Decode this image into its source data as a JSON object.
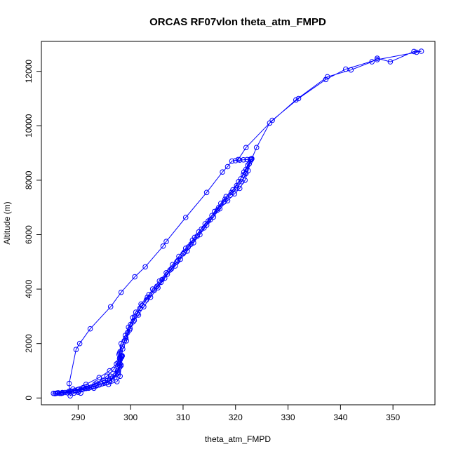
{
  "chart_data": {
    "type": "line",
    "title": "ORCAS RF07vlon theta_atm_FMPD",
    "xlabel": "theta_atm_FMPD",
    "ylabel": "Altitude (m)",
    "xlim": [
      283,
      358
    ],
    "ylim": [
      -250,
      13100
    ],
    "xticks": [
      290,
      300,
      310,
      320,
      330,
      340,
      350
    ],
    "yticks": [
      0,
      2000,
      4000,
      6000,
      8000,
      10000,
      12000
    ],
    "grid": false,
    "legend": "none",
    "color": "#0000ff",
    "marker": "open-circle",
    "series": [
      {
        "points": [
          [
            285.3,
            170
          ],
          [
            286.5,
            170
          ],
          [
            288.0,
            190
          ],
          [
            289.5,
            260
          ],
          [
            291.0,
            330
          ],
          [
            292.5,
            400
          ],
          [
            294.0,
            480
          ],
          [
            295.5,
            560
          ],
          [
            296.5,
            700
          ],
          [
            297.5,
            900
          ],
          [
            298.0,
            1150
          ],
          [
            298.2,
            1550
          ],
          [
            298.5,
            1800
          ],
          [
            299.2,
            2100
          ],
          [
            299.8,
            2500
          ],
          [
            300.5,
            2800
          ],
          [
            301.3,
            3100
          ],
          [
            302.2,
            3400
          ],
          [
            303.2,
            3700
          ],
          [
            304.2,
            4000
          ],
          [
            305.5,
            4300
          ],
          [
            306.8,
            4600
          ],
          [
            308.0,
            4900
          ],
          [
            309.2,
            5200
          ],
          [
            310.5,
            5500
          ],
          [
            311.8,
            5800
          ],
          [
            313.0,
            6100
          ],
          [
            314.2,
            6400
          ],
          [
            315.5,
            6700
          ],
          [
            316.8,
            7000
          ],
          [
            318.0,
            7300
          ],
          [
            319.2,
            7550
          ],
          [
            320.2,
            7800
          ],
          [
            321.0,
            8050
          ],
          [
            321.6,
            8300
          ],
          [
            322.3,
            8550
          ],
          [
            323.0,
            8770
          ],
          [
            323.1,
            8790
          ],
          [
            324.0,
            9200
          ],
          [
            326.5,
            10100
          ],
          [
            331.5,
            10950
          ],
          [
            337.5,
            11800
          ],
          [
            342.0,
            12050
          ],
          [
            346.0,
            12350
          ],
          [
            347.0,
            12480
          ],
          [
            349.5,
            12350
          ],
          [
            354.0,
            12730
          ],
          [
            355.4,
            12740
          ],
          [
            354.5,
            12700
          ],
          [
            347.0,
            12430
          ],
          [
            341.0,
            12080
          ],
          [
            337.2,
            11700
          ],
          [
            332.0,
            11000
          ],
          [
            327.0,
            10200
          ],
          [
            322.0,
            9200
          ],
          [
            320.5,
            8760
          ],
          [
            319.3,
            8700
          ],
          [
            318.5,
            8500
          ],
          [
            317.5,
            8300
          ],
          [
            314.5,
            7550
          ],
          [
            310.5,
            6630
          ],
          [
            306.8,
            5750
          ],
          [
            306.2,
            5580
          ],
          [
            302.8,
            4820
          ],
          [
            300.8,
            4450
          ],
          [
            298.2,
            3880
          ],
          [
            296.2,
            3350
          ],
          [
            292.3,
            2540
          ],
          [
            290.3,
            2000
          ],
          [
            289.6,
            1780
          ],
          [
            288.3,
            530
          ],
          [
            288.5,
            80
          ],
          [
            289.2,
            180
          ],
          [
            290.5,
            180
          ]
        ]
      },
      {
        "points": [
          [
            285.6,
            160
          ],
          [
            287.0,
            180
          ],
          [
            288.8,
            230
          ],
          [
            290.5,
            300
          ],
          [
            292.0,
            360
          ],
          [
            293.5,
            450
          ],
          [
            295.0,
            560
          ],
          [
            296.0,
            650
          ],
          [
            297.2,
            860
          ],
          [
            297.8,
            1100
          ],
          [
            298.0,
            1400
          ],
          [
            297.8,
            1600
          ],
          [
            298.2,
            2000
          ],
          [
            299.0,
            2300
          ],
          [
            299.6,
            2600
          ],
          [
            300.4,
            2950
          ],
          [
            301.0,
            3150
          ],
          [
            302.0,
            3450
          ],
          [
            303.5,
            3800
          ],
          [
            305.0,
            4100
          ],
          [
            306.0,
            4350
          ],
          [
            307.5,
            4700
          ],
          [
            308.8,
            5000
          ],
          [
            310.0,
            5300
          ],
          [
            311.0,
            5550
          ],
          [
            312.2,
            5900
          ],
          [
            313.5,
            6200
          ],
          [
            314.8,
            6500
          ],
          [
            316.0,
            6850
          ],
          [
            317.2,
            7150
          ],
          [
            318.2,
            7400
          ],
          [
            319.5,
            7650
          ],
          [
            320.6,
            7950
          ],
          [
            321.5,
            8200
          ],
          [
            322.0,
            8400
          ],
          [
            322.8,
            8700
          ],
          [
            323.0,
            8760
          ]
        ]
      },
      {
        "points": [
          [
            286.2,
            190
          ],
          [
            288.2,
            240
          ],
          [
            290.0,
            310
          ],
          [
            291.8,
            400
          ],
          [
            293.2,
            500
          ],
          [
            294.8,
            650
          ],
          [
            296.2,
            800
          ],
          [
            297.5,
            1000
          ],
          [
            298.0,
            1250
          ],
          [
            298.3,
            1500
          ],
          [
            298.0,
            1700
          ],
          [
            298.8,
            2100
          ],
          [
            299.4,
            2400
          ],
          [
            300.0,
            2700
          ],
          [
            300.8,
            3000
          ],
          [
            301.8,
            3300
          ],
          [
            303.0,
            3600
          ],
          [
            304.5,
            3950
          ],
          [
            305.8,
            4250
          ],
          [
            307.0,
            4550
          ],
          [
            308.5,
            4850
          ],
          [
            309.5,
            5100
          ],
          [
            310.8,
            5400
          ],
          [
            312.0,
            5700
          ],
          [
            313.2,
            6000
          ],
          [
            314.5,
            6350
          ],
          [
            315.8,
            6650
          ],
          [
            317.0,
            6950
          ],
          [
            318.5,
            7250
          ],
          [
            319.8,
            7500
          ],
          [
            320.8,
            7700
          ],
          [
            321.8,
            8000
          ],
          [
            322.4,
            8350
          ],
          [
            323.0,
            8780
          ]
        ]
      },
      {
        "points": [
          [
            285.8,
            170
          ],
          [
            287.5,
            200
          ],
          [
            289.5,
            270
          ],
          [
            291.5,
            350
          ],
          [
            293.0,
            420
          ],
          [
            294.5,
            520
          ],
          [
            296.0,
            610
          ],
          [
            297.0,
            750
          ],
          [
            297.6,
            950
          ],
          [
            297.9,
            1200
          ],
          [
            298.1,
            1450
          ],
          [
            297.9,
            1650
          ],
          [
            298.4,
            1900
          ],
          [
            299.1,
            2200
          ],
          [
            299.9,
            2550
          ],
          [
            300.7,
            2850
          ],
          [
            301.5,
            3050
          ],
          [
            302.5,
            3350
          ],
          [
            303.8,
            3700
          ],
          [
            305.2,
            4050
          ],
          [
            306.5,
            4400
          ],
          [
            307.8,
            4750
          ],
          [
            309.0,
            5050
          ],
          [
            310.2,
            5350
          ],
          [
            311.5,
            5650
          ],
          [
            312.7,
            5950
          ],
          [
            314.0,
            6250
          ],
          [
            315.2,
            6550
          ],
          [
            316.5,
            6900
          ],
          [
            317.8,
            7200
          ],
          [
            319.0,
            7450
          ],
          [
            320.2,
            7720
          ],
          [
            321.2,
            7950
          ],
          [
            322.0,
            8250
          ],
          [
            322.6,
            8600
          ],
          [
            323.0,
            8770
          ]
        ]
      },
      {
        "points": [
          [
            286.0,
            180
          ],
          [
            288.5,
            260
          ],
          [
            291.0,
            380
          ],
          [
            293.5,
            550
          ],
          [
            295.5,
            800
          ],
          [
            296.8,
            1050
          ],
          [
            297.6,
            1300
          ],
          [
            298.0,
            1500
          ],
          [
            298.3,
            1550
          ]
        ]
      },
      {
        "points": [
          [
            287.0,
            200
          ],
          [
            289.0,
            330
          ],
          [
            291.5,
            500
          ],
          [
            294.0,
            750
          ],
          [
            296.0,
            1000
          ],
          [
            297.3,
            1250
          ],
          [
            297.9,
            1450
          ],
          [
            298.2,
            1540
          ]
        ]
      },
      {
        "points": [
          [
            286.8,
            170
          ],
          [
            290.0,
            210
          ],
          [
            293.0,
            360
          ],
          [
            295.8,
            500
          ],
          [
            297.4,
            600
          ],
          [
            298.0,
            800
          ],
          [
            298.2,
            1200
          ],
          [
            298.4,
            1550
          ]
        ]
      },
      {
        "points": [
          [
            320.0,
            8720
          ],
          [
            320.8,
            8740
          ],
          [
            321.5,
            8750
          ],
          [
            322.2,
            8760
          ],
          [
            322.8,
            8770
          ],
          [
            323.0,
            8775
          ],
          [
            323.1,
            8790
          ]
        ]
      }
    ]
  }
}
